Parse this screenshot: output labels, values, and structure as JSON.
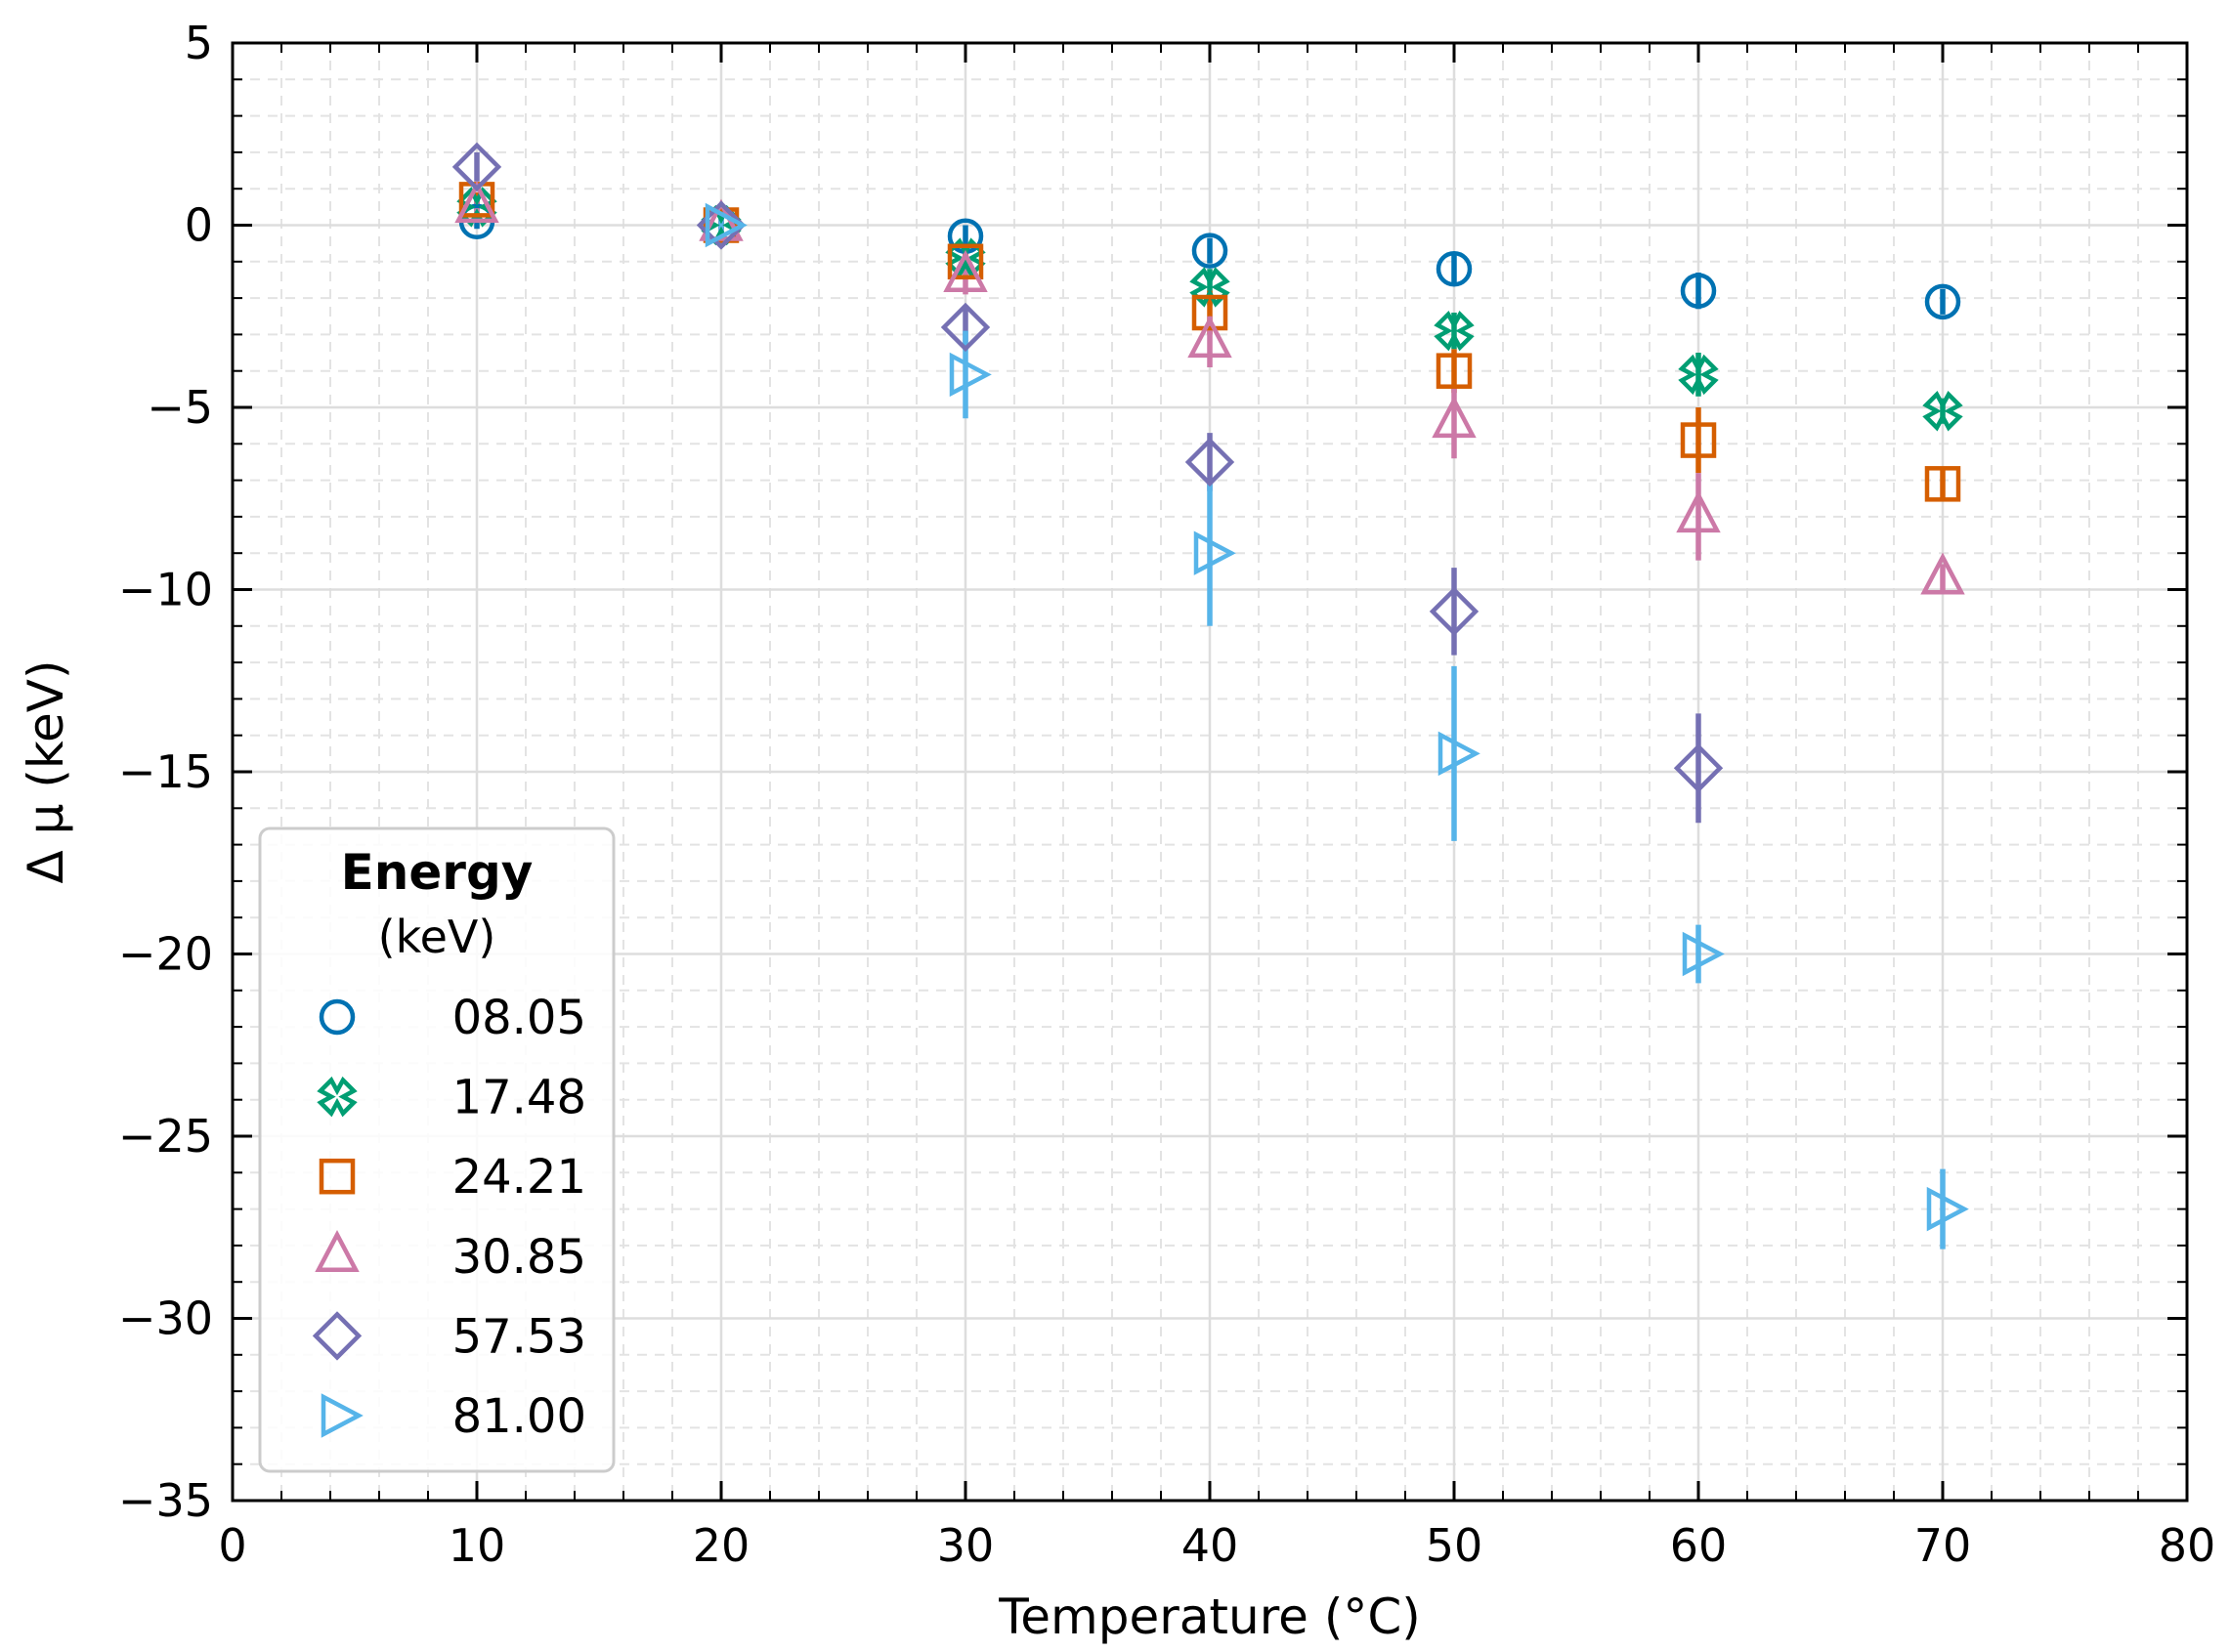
{
  "chart_data": {
    "type": "scatter",
    "xlabel": "Temperature (°C)",
    "ylabel": "Δ μ (keV)",
    "xlim": [
      0,
      80
    ],
    "ylim": [
      -35,
      5
    ],
    "xticks": [
      0,
      10,
      20,
      30,
      40,
      50,
      60,
      70,
      80
    ],
    "xtick_labels": [
      "0",
      "10",
      "20",
      "30",
      "40",
      "50",
      "60",
      "70",
      "80"
    ],
    "yticks": [
      5,
      0,
      -5,
      -10,
      -15,
      -20,
      -25,
      -30,
      -35
    ],
    "ytick_labels": [
      "5",
      "0",
      "−5",
      "−10",
      "−15",
      "−20",
      "−25",
      "−30",
      "−35"
    ],
    "grid": true,
    "legend": {
      "title": "Energy",
      "subtitle": "(keV)",
      "position": "lower-left"
    },
    "series": [
      {
        "name": "08.05",
        "color": "#0072B2",
        "marker": "circle",
        "x": [
          10,
          20,
          30,
          40,
          50,
          60,
          70
        ],
        "y": [
          0.1,
          0,
          -0.3,
          -0.7,
          -1.2,
          -1.8,
          -2.1
        ],
        "yerr": [
          0.2,
          0.1,
          0.3,
          0.35,
          0.4,
          0.5,
          0.35
        ]
      },
      {
        "name": "17.48",
        "color": "#009E73",
        "marker": "x",
        "x": [
          10,
          20,
          30,
          40,
          50,
          60,
          70
        ],
        "y": [
          0.5,
          0,
          -0.9,
          -1.7,
          -2.9,
          -4.1,
          -5.1
        ],
        "yerr": [
          0.2,
          0.1,
          0.35,
          0.5,
          0.5,
          0.6,
          0.35
        ]
      },
      {
        "name": "24.21",
        "color": "#D55E00",
        "marker": "square",
        "x": [
          10,
          20,
          30,
          40,
          50,
          60,
          70
        ],
        "y": [
          0.7,
          0,
          -1.0,
          -2.4,
          -4.0,
          -5.9,
          -7.1
        ],
        "yerr": [
          0.2,
          0.1,
          0.4,
          0.6,
          0.6,
          0.9,
          0.4
        ]
      },
      {
        "name": "30.85",
        "color": "#CC79A7",
        "marker": "triangle-up",
        "x": [
          10,
          20,
          30,
          40,
          50,
          60,
          70
        ],
        "y": [
          0.5,
          0,
          -1.4,
          -3.2,
          -5.4,
          -8.0,
          -9.7
        ],
        "yerr": [
          0.2,
          0.15,
          0.5,
          0.7,
          1.0,
          1.2,
          0.4
        ]
      },
      {
        "name": "57.53",
        "color": "#7570B3",
        "marker": "diamond",
        "x": [
          10,
          20,
          30,
          40,
          50,
          60,
          70
        ],
        "y": [
          1.6,
          0,
          -2.8,
          -6.5,
          -10.6,
          -14.9,
          null
        ],
        "yerr": [
          0.4,
          0.2,
          0.6,
          0.8,
          1.2,
          1.5,
          null
        ]
      },
      {
        "name": "81.00",
        "color": "#56B4E9",
        "marker": "triangle-right",
        "x": [
          10,
          20,
          30,
          40,
          50,
          60,
          70
        ],
        "y": [
          null,
          0,
          -4.1,
          -9.0,
          -14.5,
          -20.0,
          -27.0
        ],
        "yerr": [
          null,
          0.2,
          1.2,
          2.0,
          2.4,
          0.8,
          1.1
        ]
      }
    ]
  }
}
